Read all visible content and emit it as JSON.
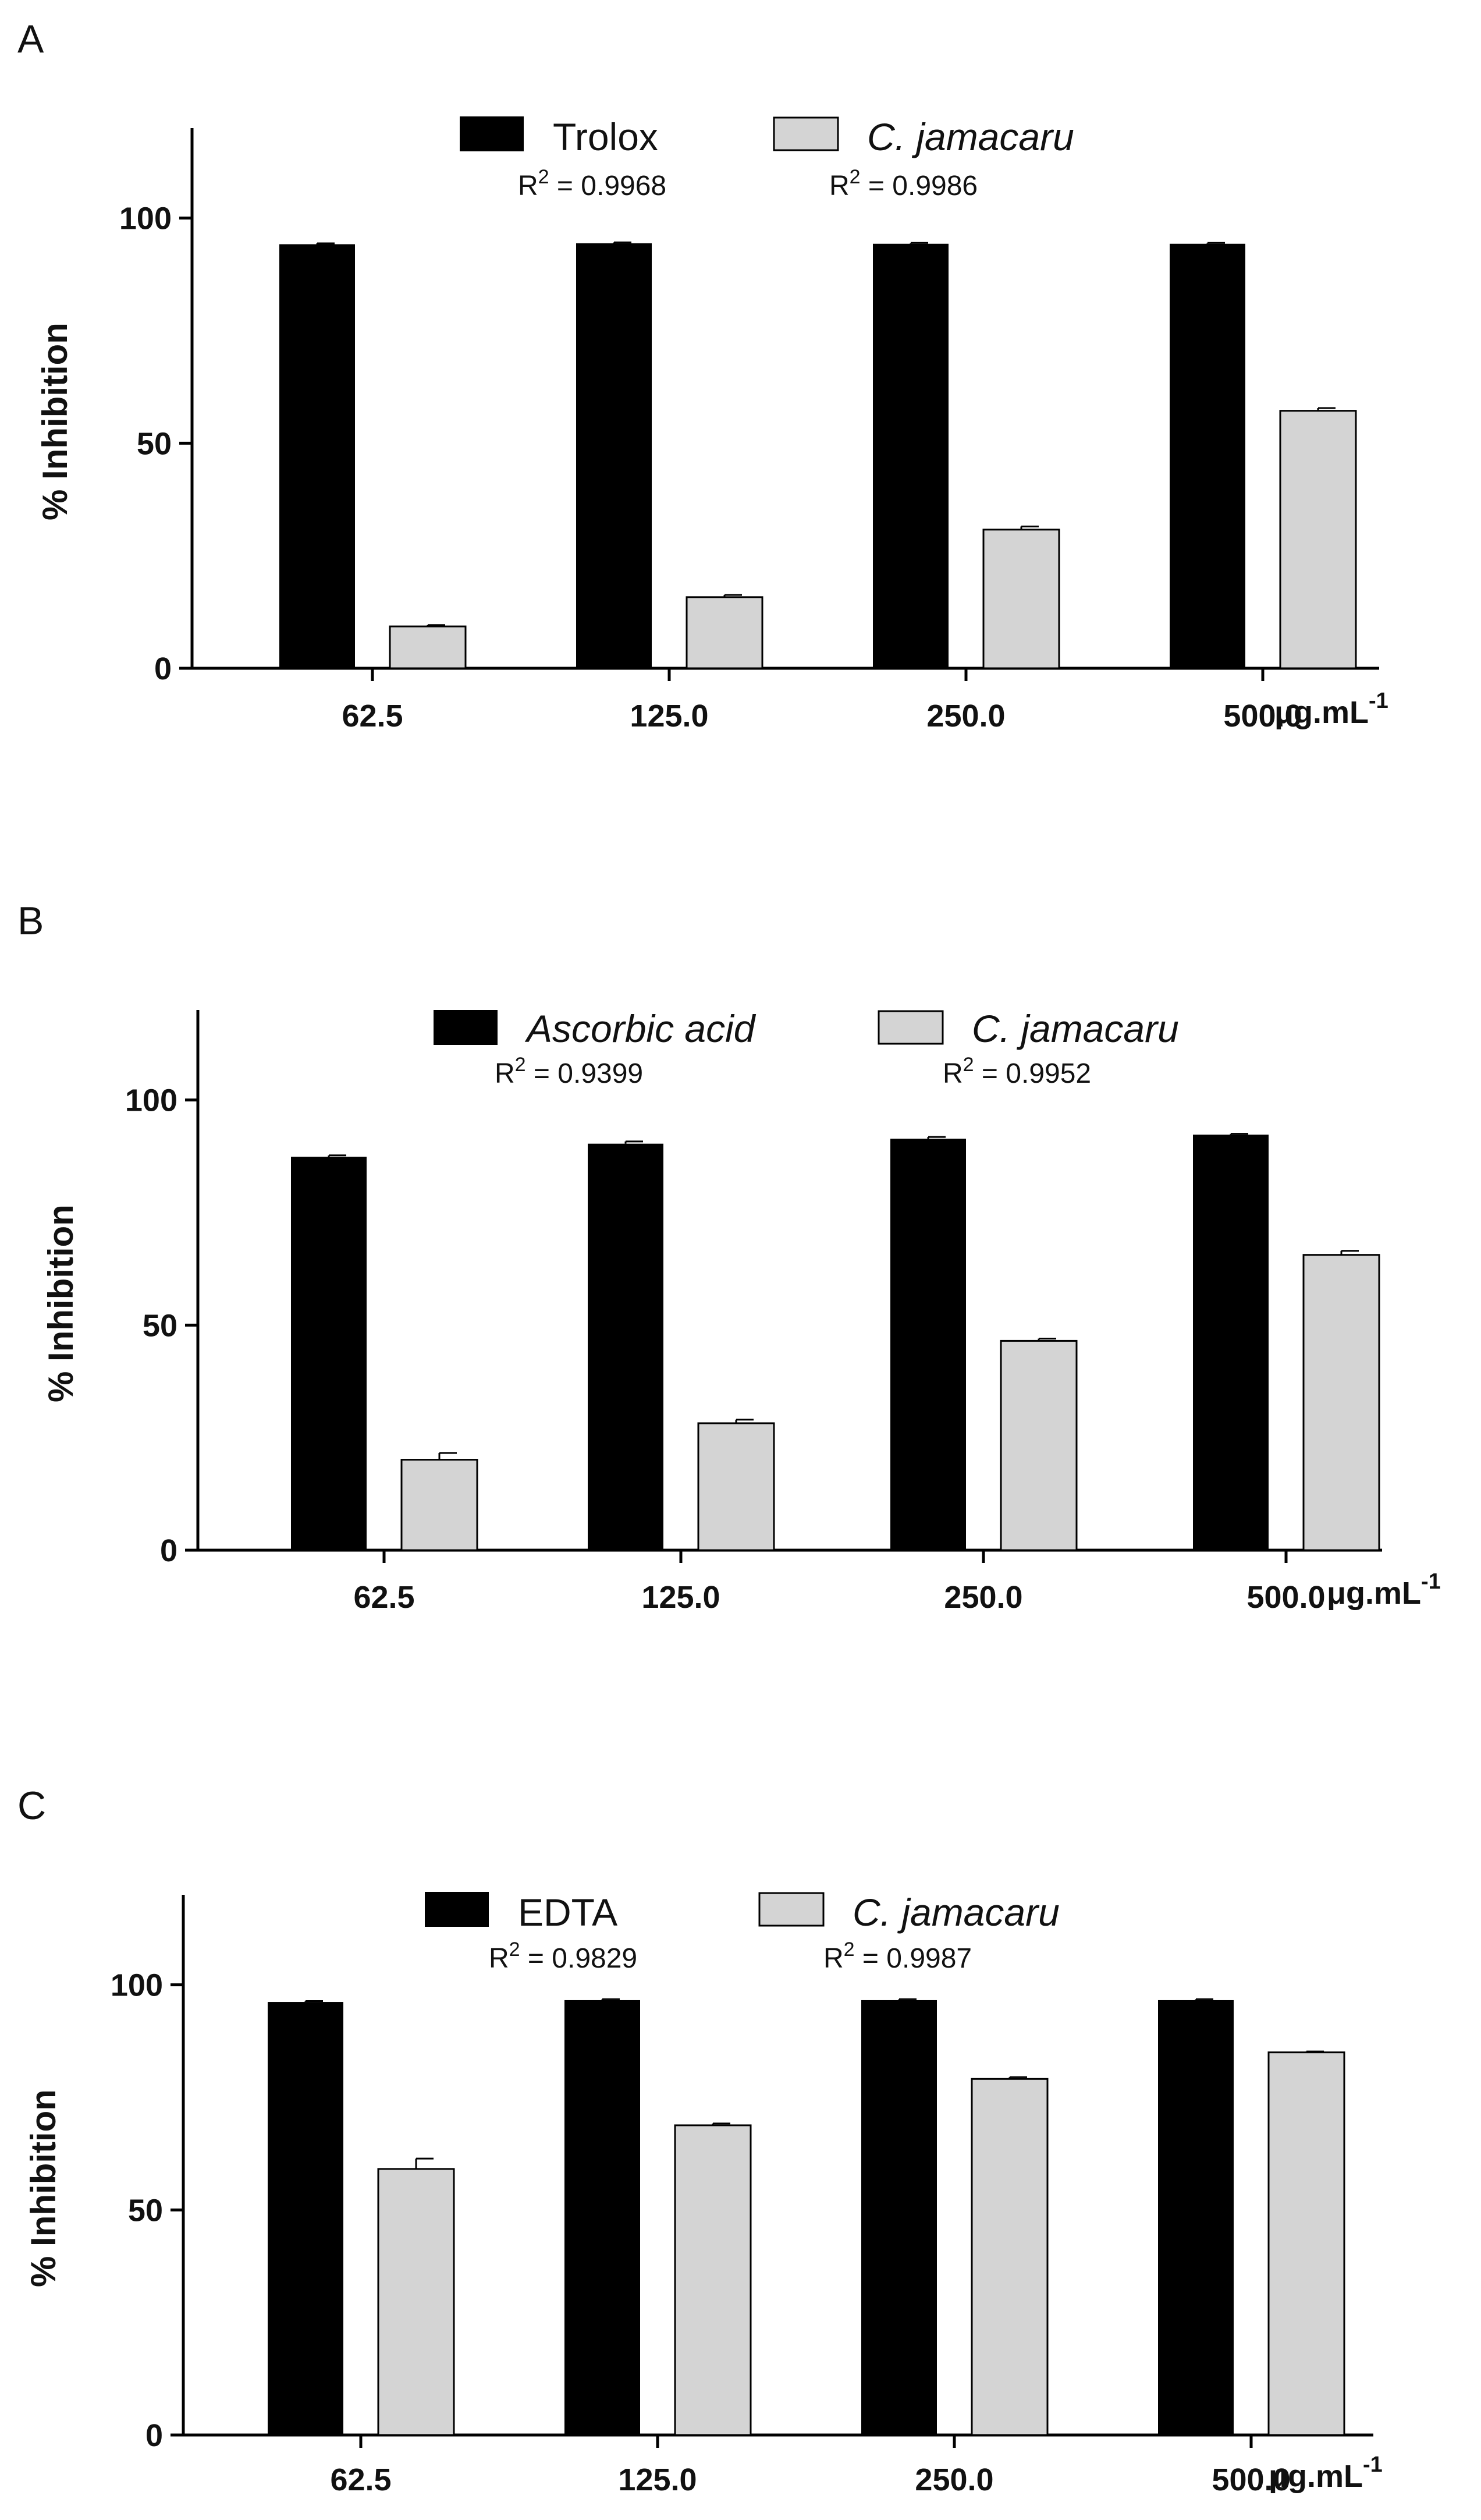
{
  "chart_data": [
    {
      "type": "bar",
      "panel": "A",
      "ylabel": "% Inhibition",
      "xunit": "μg.mL",
      "xunit_sup": "-1",
      "ylim": [
        0,
        120
      ],
      "yticks": [
        "0",
        "50",
        "100"
      ],
      "categories": [
        "62.5",
        "125.0",
        "250.0",
        "500.0"
      ],
      "series": [
        {
          "name": "Trolox",
          "italic": false,
          "color": "#000000",
          "values": [
            94.2,
            94.4,
            94.3,
            94.3
          ],
          "errors": [
            0.2,
            0.2,
            0.2,
            0.2
          ],
          "r2": "0.9968"
        },
        {
          "name": "C. jamacaru",
          "italic": true,
          "color": "#d4d4d4",
          "values": [
            9.3,
            15.8,
            30.8,
            57.2
          ],
          "errors": [
            0.3,
            0.5,
            0.7,
            0.6
          ],
          "r2": "0.9986"
        }
      ]
    },
    {
      "type": "bar",
      "panel": "B",
      "ylabel": "% Inhibition",
      "xunit": "μg.mL",
      "xunit_sup": "-1",
      "ylim": [
        0,
        120
      ],
      "yticks": [
        "0",
        "50",
        "100"
      ],
      "categories": [
        "62.5",
        "125.0",
        "250.0",
        "500.0"
      ],
      "series": [
        {
          "name": "Ascorbic acid",
          "italic": true,
          "color": "#000000",
          "values": [
            87.4,
            90.3,
            91.4,
            92.3
          ],
          "errors": [
            0.3,
            0.5,
            0.4,
            0.2
          ],
          "r2": "0.9399"
        },
        {
          "name": "C. jamacaru",
          "italic": true,
          "color": "#d4d4d4",
          "values": [
            20.1,
            28.2,
            46.5,
            65.6
          ],
          "errors": [
            1.5,
            0.8,
            0.5,
            0.9
          ],
          "r2": "0.9952"
        }
      ]
    },
    {
      "type": "bar",
      "panel": "C",
      "ylabel": "% Inhibition",
      "xunit": "μg.mL",
      "xunit_sup": "-1",
      "ylim": [
        0,
        120
      ],
      "yticks": [
        "0",
        "50",
        "100"
      ],
      "categories": [
        "62.5",
        "125.0",
        "250.0",
        "500.0"
      ],
      "series": [
        {
          "name": "EDTA",
          "italic": false,
          "color": "#000000",
          "values": [
            96.2,
            96.6,
            96.6,
            96.6
          ],
          "errors": [
            0.2,
            0.2,
            0.2,
            0.2
          ],
          "r2": "0.9829"
        },
        {
          "name": "C. jamacaru",
          "italic": true,
          "color": "#d4d4d4",
          "values": [
            59.1,
            68.8,
            79.1,
            85.0
          ],
          "errors": [
            2.3,
            0.4,
            0.4,
            0.2
          ],
          "r2": "0.9987"
        }
      ]
    }
  ]
}
